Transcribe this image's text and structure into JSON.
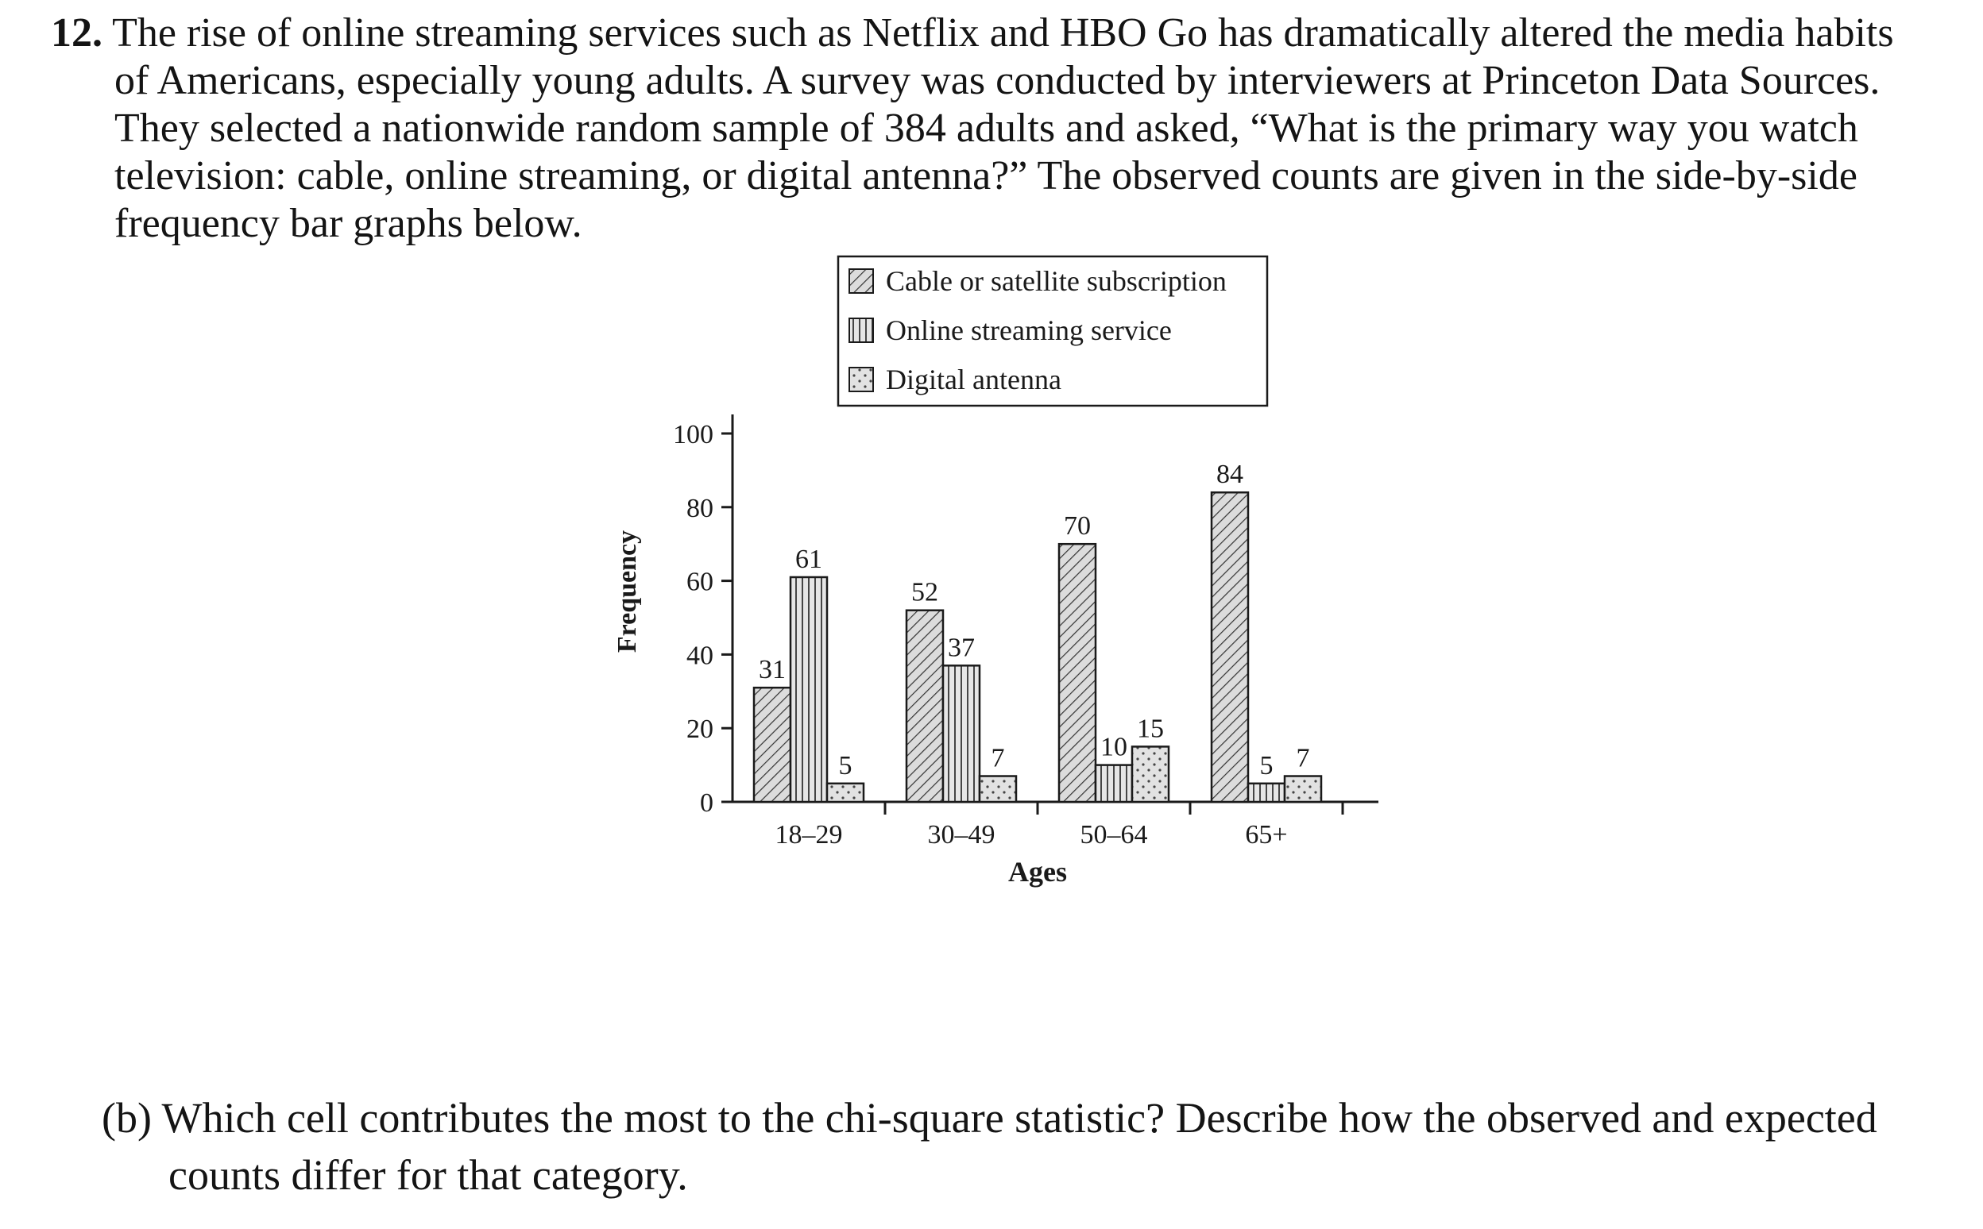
{
  "question": {
    "number": "12.",
    "lines": [
      "The rise of online streaming services such as Netflix and HBO Go has dramatically altered the media habits",
      "of Americans, especially young adults. A survey was conducted by interviewers at Princeton Data Sources.",
      "They selected a nationwide random sample of 384 adults and asked, “What is the primary way you watch",
      "television: cable, online streaming, or digital antenna?” The observed counts are given in the side-by-side",
      "frequency bar graphs below."
    ]
  },
  "chart_data": {
    "type": "bar",
    "categories": [
      "18–29",
      "30–49",
      "50–64",
      "65+"
    ],
    "series": [
      {
        "name": "Cable or satellite subscription",
        "values": [
          31,
          52,
          70,
          84
        ],
        "pattern": "diagonal-hatch"
      },
      {
        "name": "Online streaming service",
        "values": [
          61,
          37,
          10,
          5
        ],
        "pattern": "vertical-lines"
      },
      {
        "name": "Digital antenna",
        "values": [
          5,
          7,
          15,
          7
        ],
        "pattern": "dots"
      }
    ],
    "xlabel": "Ages",
    "ylabel": "Frequency",
    "ylim": [
      0,
      100
    ],
    "yticks": [
      0,
      20,
      40,
      60,
      80,
      100
    ],
    "data_labels": true,
    "legend_position": "top-center",
    "grid": false,
    "colors": {
      "ink": "#1a1a1a",
      "fill": "#d9d9d9"
    }
  },
  "part_b": {
    "label": "(b)",
    "line1": "Which cell contributes the most to the chi-square statistic? Describe how the observed and expected",
    "line2": "counts differ for that category."
  }
}
